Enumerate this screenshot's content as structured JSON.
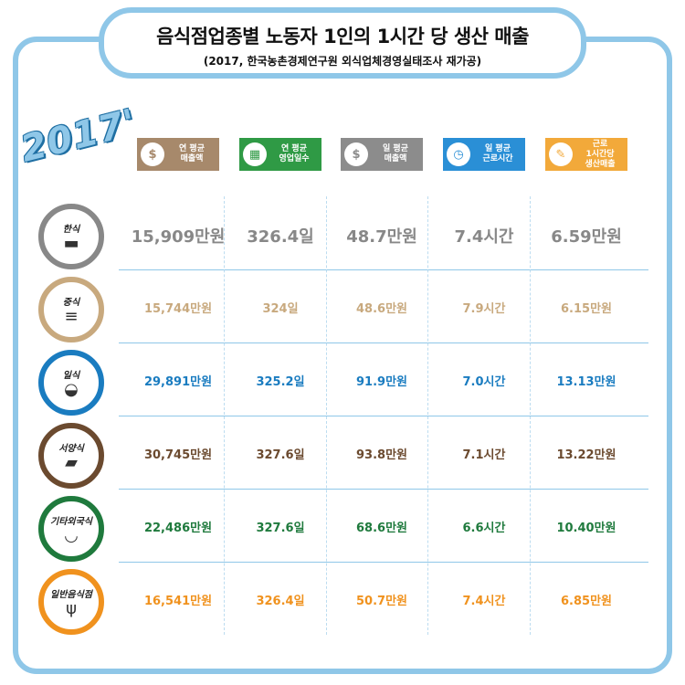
{
  "title": "음식점업종별 노동자 1인의 1시간 당 생산 매출",
  "subtitle": "(2017, 한국농촌경제연구원 외식업체경영실태조사 재가공)",
  "year_badge": "2017'",
  "colors": {
    "border": "#8fc7e8",
    "korean": "#888888",
    "chinese": "#c8a97e",
    "japanese": "#1a7cc0",
    "western": "#6b4a2f",
    "other": "#1f7a3d",
    "general": "#f0921e"
  },
  "headers": [
    {
      "label": "연 평균\n매출액",
      "icon": "coin-icon",
      "glyph": "$",
      "color": "#a7896b"
    },
    {
      "label": "연 평균\n영업일수",
      "icon": "calendar-icon",
      "glyph": "▦",
      "color": "#2f9a45"
    },
    {
      "label": "일 평균\n매출액",
      "icon": "coin-icon",
      "glyph": "$",
      "color": "#8c8c8c"
    },
    {
      "label": "일 평균\n근로시간",
      "icon": "clock-icon",
      "glyph": "◷",
      "color": "#2a8fd6"
    },
    {
      "label": "근로\n1시간당\n생산매출",
      "icon": "worker-icon",
      "glyph": "✎",
      "color": "#f2a93a"
    }
  ],
  "rows": [
    {
      "name": "한식",
      "icon": "pot-icon",
      "glyph": "▬",
      "color": "#888888",
      "values": [
        "15,909만원",
        "326.4일",
        "48.7만원",
        "7.4시간",
        "6.59만원"
      ]
    },
    {
      "name": "중식",
      "icon": "dumpling-icon",
      "glyph": "≡",
      "color": "#c8a97e",
      "values": [
        "15,744만원",
        "324일",
        "48.6만원",
        "7.9시간",
        "6.15만원"
      ]
    },
    {
      "name": "일식",
      "icon": "bowl-icon",
      "glyph": "◒",
      "color": "#1a7cc0",
      "values": [
        "29,891만원",
        "325.2일",
        "91.9만원",
        "7.0시간",
        "13.13만원"
      ]
    },
    {
      "name": "서양식",
      "icon": "steak-icon",
      "glyph": "▰",
      "color": "#6b4a2f",
      "values": [
        "30,745만원",
        "327.6일",
        "93.8만원",
        "7.1시간",
        "13.22만원"
      ]
    },
    {
      "name": "기타외국식",
      "icon": "noodle-bowl-icon",
      "glyph": "◡",
      "color": "#1f7a3d",
      "values": [
        "22,486만원",
        "327.6일",
        "68.6만원",
        "6.6시간",
        "10.40만원"
      ]
    },
    {
      "name": "일반음식점",
      "icon": "utensils-icon",
      "glyph": "ψ",
      "color": "#f0921e",
      "values": [
        "16,541만원",
        "326.4일",
        "50.7만원",
        "7.4시간",
        "6.85만원"
      ]
    }
  ]
}
